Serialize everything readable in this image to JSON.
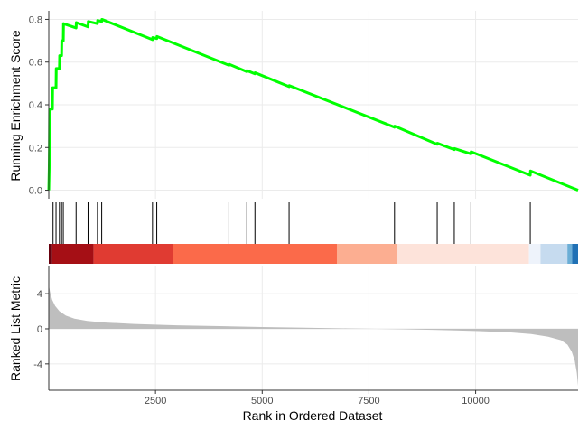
{
  "chart_data": {
    "type": "line",
    "xlabel": "Rank in Ordered Dataset",
    "xlim": [
      0,
      12400
    ],
    "xticks": [
      {
        "value": 2500,
        "label": "2500"
      },
      {
        "value": 5000,
        "label": "5000"
      },
      {
        "value": 7500,
        "label": "7500"
      },
      {
        "value": 10000,
        "label": "10000"
      }
    ],
    "top_panel": {
      "ylabel": "Running Enrichment Score",
      "ylim": [
        -0.04,
        0.84
      ],
      "yticks": [
        {
          "value": 0.0,
          "label": "0.0"
        },
        {
          "value": 0.2,
          "label": "0.2"
        },
        {
          "value": 0.4,
          "label": "0.4"
        },
        {
          "value": 0.6,
          "label": "0.6"
        },
        {
          "value": 0.8,
          "label": "0.8"
        }
      ],
      "line_color": "#00ff00",
      "series": [
        {
          "x": [
            0,
            10,
            15,
            20,
            85,
            90,
            170,
            175,
            250,
            255,
            300,
            305,
            340,
            345,
            640,
            645,
            920,
            925,
            1140,
            1145,
            1240,
            1245,
            2430,
            2435,
            2530,
            2535,
            4220,
            4225,
            4640,
            4645,
            4830,
            4835,
            5630,
            5635,
            8100,
            8105,
            9100,
            9105,
            9500,
            9505,
            9890,
            9895,
            11280,
            11285,
            12400
          ],
          "y": [
            0,
            0.1,
            0.2,
            0.38,
            0.38,
            0.48,
            0.48,
            0.57,
            0.57,
            0.63,
            0.63,
            0.7,
            0.7,
            0.78,
            0.76,
            0.785,
            0.765,
            0.79,
            0.78,
            0.795,
            0.79,
            0.8,
            0.705,
            0.715,
            0.71,
            0.72,
            0.585,
            0.59,
            0.555,
            0.56,
            0.545,
            0.55,
            0.485,
            0.49,
            0.295,
            0.3,
            0.215,
            0.22,
            0.19,
            0.195,
            0.17,
            0.18,
            0.07,
            0.09,
            0.0
          ]
        }
      ]
    },
    "hits": [
      100,
      170,
      250,
      300,
      340,
      640,
      920,
      1140,
      1240,
      2430,
      2530,
      4220,
      4640,
      4830,
      5630,
      8100,
      9100,
      9500,
      9890,
      11280
    ],
    "color_bar": [
      {
        "from": 0,
        "to": 80,
        "color": "#67000d"
      },
      {
        "from": 80,
        "to": 1050,
        "color": "#a50f15"
      },
      {
        "from": 1050,
        "to": 2900,
        "color": "#e03b32"
      },
      {
        "from": 2900,
        "to": 6750,
        "color": "#fb6a4a"
      },
      {
        "from": 6750,
        "to": 8150,
        "color": "#fcae91"
      },
      {
        "from": 8150,
        "to": 11250,
        "color": "#fde3da"
      },
      {
        "from": 11250,
        "to": 11520,
        "color": "#eef3fb"
      },
      {
        "from": 11520,
        "to": 12150,
        "color": "#c6dbef"
      },
      {
        "from": 12150,
        "to": 12260,
        "color": "#6baed6"
      },
      {
        "from": 12260,
        "to": 12400,
        "color": "#2171b5"
      }
    ],
    "bottom_panel": {
      "ylabel": "Ranked List Metric",
      "ylim": [
        -7.0,
        7.2
      ],
      "yticks": [
        {
          "value": 4,
          "label": "4"
        },
        {
          "value": 0,
          "label": "0"
        },
        {
          "value": -4,
          "label": "-4"
        }
      ],
      "fill_color": "#bebebe",
      "metric": {
        "x": [
          0,
          30,
          80,
          150,
          250,
          400,
          600,
          900,
          1300,
          2000,
          3000,
          4000,
          5000,
          6000,
          7000,
          8000,
          9000,
          10000,
          10800,
          11300,
          11700,
          12000,
          12150,
          12250,
          12320,
          12370,
          12400
        ],
        "y": [
          5.0,
          4.2,
          3.3,
          2.6,
          2.0,
          1.5,
          1.15,
          0.9,
          0.72,
          0.55,
          0.4,
          0.3,
          0.2,
          0.12,
          0.05,
          -0.03,
          -0.12,
          -0.25,
          -0.4,
          -0.6,
          -0.9,
          -1.3,
          -1.8,
          -2.6,
          -3.6,
          -5.0,
          -6.5
        ]
      }
    }
  }
}
